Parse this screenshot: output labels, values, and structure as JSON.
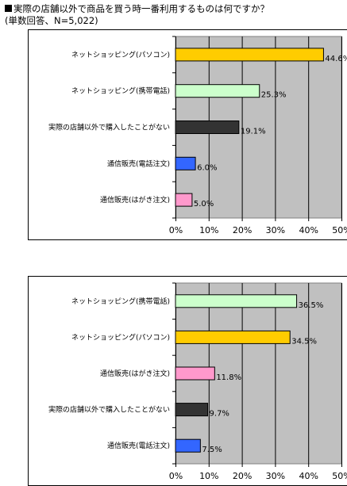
{
  "page": {
    "title": "実際の店舗以外で商品を買う時一番利用するものは何ですか？",
    "subtitle": "(単数回答、N=5,022)"
  },
  "chart_data": [
    {
      "type": "bar",
      "orientation": "horizontal",
      "categories": [
        "ネットショッピング(パソコン)",
        "ネットショッピング(携帯電話)",
        "実際の店舗以外で購入したことがない",
        "通信販売(電話注文)",
        "通信販売(はがき注文)"
      ],
      "values": [
        44.6,
        25.3,
        19.1,
        6.0,
        5.0
      ],
      "value_labels": [
        "44.6%",
        "25.3%",
        "19.1%",
        "6.0%",
        "5.0%"
      ],
      "colors": [
        "#ffcc00",
        "#ccffcc",
        "#333333",
        "#3366ff",
        "#ff99cc"
      ],
      "xlim": [
        0,
        50
      ],
      "xticks": [
        "0%",
        "10%",
        "20%",
        "30%",
        "40%",
        "50%"
      ],
      "plot_background": "#c0c0c0",
      "grid": true
    },
    {
      "type": "bar",
      "orientation": "horizontal",
      "categories": [
        "ネットショッピング(携帯電話)",
        "ネットショッピング(パソコン)",
        "通信販売(はがき注文)",
        "実際の店舗以外で購入したことがない",
        "通信販売(電話注文)"
      ],
      "values": [
        36.5,
        34.5,
        11.8,
        9.7,
        7.5
      ],
      "value_labels": [
        "36.5%",
        "34.5%",
        "11.8%",
        "9.7%",
        "7.5%"
      ],
      "colors": [
        "#ccffcc",
        "#ffcc00",
        "#ff99cc",
        "#333333",
        "#3366ff"
      ],
      "xlim": [
        0,
        50
      ],
      "xticks": [
        "0%",
        "10%",
        "20%",
        "30%",
        "40%",
        "50%"
      ],
      "plot_background": "#c0c0c0",
      "grid": true
    }
  ]
}
